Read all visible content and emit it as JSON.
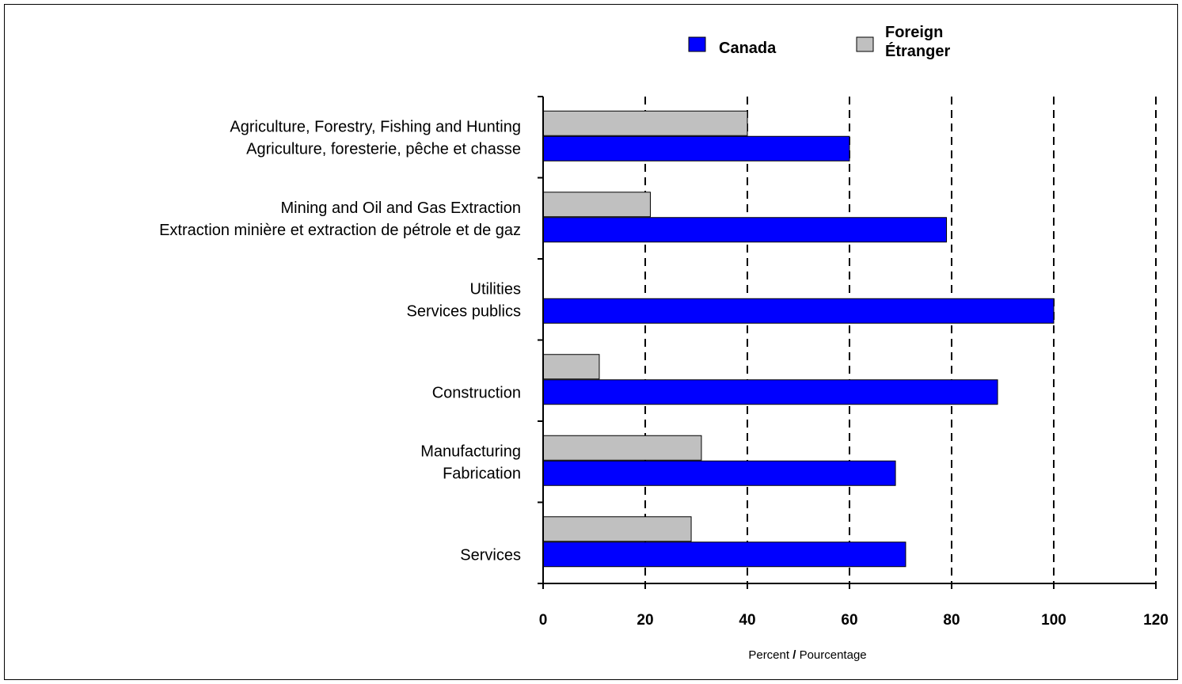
{
  "chart_data": {
    "type": "bar",
    "orientation": "horizontal",
    "categories": [
      [
        "Agriculture, Forestry, Fishing and Hunting",
        "Agriculture, foresterie, pêche et chasse"
      ],
      [
        "Mining and Oil and Gas Extraction",
        "Extraction minière et extraction de pétrole et de gaz"
      ],
      [
        "Utilities",
        "Services publics"
      ],
      [
        "Construction"
      ],
      [
        "Manufacturing",
        "Fabrication"
      ],
      [
        "Services"
      ]
    ],
    "series": [
      {
        "name": "Canada",
        "color": "#0000ff",
        "values": [
          60,
          79,
          100,
          89,
          69,
          71
        ]
      },
      {
        "name": [
          "Foreign",
          "Étranger"
        ],
        "color": "#c0c0c0",
        "values": [
          40,
          21,
          0,
          11,
          31,
          29
        ]
      }
    ],
    "xlim": [
      0,
      120
    ],
    "xticks": [
      0,
      20,
      40,
      60,
      80,
      100,
      120
    ],
    "xlabel": {
      "en": "Percent",
      "sep": " / ",
      "fr": "Pourcentage"
    },
    "grid": "vertical dashed",
    "legend": "top"
  }
}
